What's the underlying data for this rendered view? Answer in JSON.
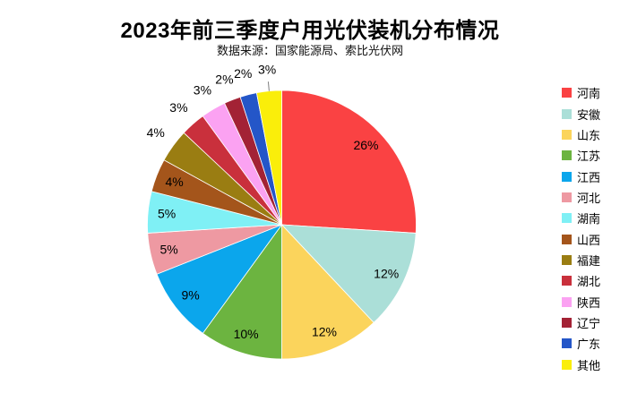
{
  "chart_data": {
    "type": "pie",
    "title": "2023年前三季度户用光伏装机分布情况",
    "subtitle": "数据来源：国家能源局、索比光伏网",
    "legend_position": "right",
    "start_angle_deg": 0,
    "direction": "clockwise",
    "categories": [
      "河南",
      "安徽",
      "山东",
      "江苏",
      "江西",
      "河北",
      "湖南",
      "山西",
      "福建",
      "湖北",
      "陕西",
      "辽宁",
      "广东",
      "其他"
    ],
    "values": [
      26,
      12,
      12,
      10,
      9,
      5,
      5,
      4,
      4,
      3,
      3,
      2,
      2,
      3
    ],
    "labels": [
      "26%",
      "12%",
      "12%",
      "10%",
      "9%",
      "5%",
      "5%",
      "4%",
      "4%",
      "3%",
      "3%",
      "2%",
      "2%",
      "3%"
    ],
    "colors": [
      "#FA4243",
      "#ABDFD8",
      "#FBD45C",
      "#6CB440",
      "#0BA6EC",
      "#EE99A2",
      "#7FF0F5",
      "#A4551B",
      "#9A7D12",
      "#C9303C",
      "#FBA2F2",
      "#A32235",
      "#2456C8",
      "#FAEE0A"
    ],
    "label_placement": [
      "inside",
      "inside",
      "inside",
      "inside",
      "inside",
      "inside",
      "inside",
      "inside",
      "outside",
      "outside",
      "outside",
      "outside",
      "outside",
      "outside"
    ],
    "leader_line_on_last_slice": true,
    "label_color": "#000000",
    "leader_line_color": "#7F7F7F",
    "background_color": "#FFFFFF"
  }
}
